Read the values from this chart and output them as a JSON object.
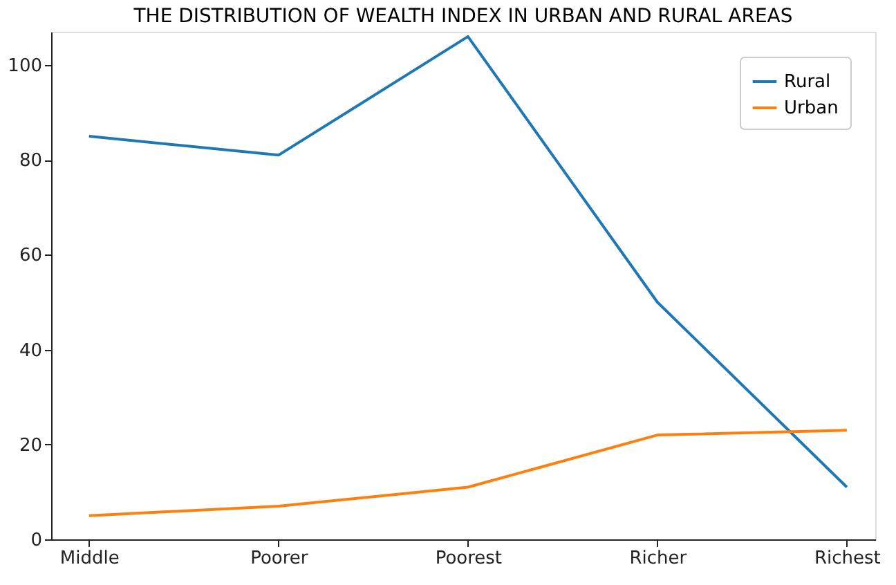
{
  "chart_data": {
    "type": "line",
    "title": "THE DISTRIBUTION OF WEALTH INDEX IN URBAN AND RURAL AREAS",
    "categories": [
      "Middle",
      "Poorer",
      "Poorest",
      "Richer",
      "Richest"
    ],
    "series": [
      {
        "name": "Rural",
        "color": "#1f77b4",
        "values": [
          85,
          81,
          106,
          50,
          11
        ]
      },
      {
        "name": "Urban",
        "color": "#ff7f0e",
        "values": [
          5,
          7,
          11,
          22,
          23
        ]
      }
    ],
    "ylim": [
      0,
      107
    ],
    "yticks": [
      0,
      20,
      40,
      60,
      80,
      100
    ],
    "grid": false,
    "legend": "top right",
    "marker": "none",
    "line_style": "solid"
  }
}
